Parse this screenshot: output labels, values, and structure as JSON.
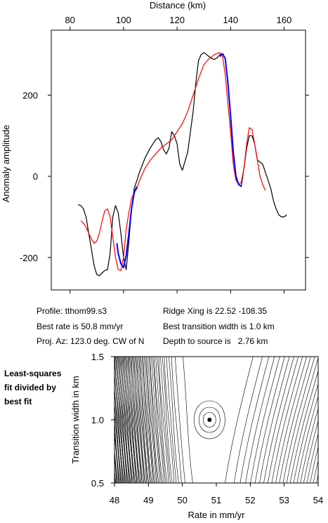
{
  "chart_data": [
    {
      "type": "line",
      "xlabel": "Distance (km)",
      "ylabel": "Anomaly amplitude",
      "xlim": [
        73,
        168
      ],
      "ylim": [
        -280,
        360
      ],
      "x_ticks": [
        80,
        100,
        120,
        140,
        160
      ],
      "y_ticks": [
        -200,
        0,
        200
      ],
      "series": [
        {
          "color": "#000000",
          "x": [
            83,
            84,
            85,
            86,
            87,
            88,
            89,
            90,
            91,
            92,
            93,
            94,
            95,
            96,
            97,
            98,
            99,
            100,
            101,
            102,
            103,
            104,
            105,
            106,
            108,
            110,
            112,
            113,
            114,
            115,
            116,
            117,
            118,
            119,
            120,
            121,
            122,
            124,
            126,
            127,
            128,
            129,
            130,
            131,
            132,
            133,
            134,
            135,
            136,
            137,
            138,
            139,
            140,
            141,
            142,
            143,
            144,
            145,
            146,
            147,
            148,
            149,
            150,
            151,
            152,
            153,
            154,
            155,
            156,
            157,
            158,
            159,
            160,
            161
          ],
          "y": [
            -70,
            -72,
            -80,
            -100,
            -140,
            -180,
            -220,
            -242,
            -245,
            -238,
            -232,
            -230,
            -190,
            -100,
            -72,
            -90,
            -140,
            -200,
            -230,
            -160,
            -80,
            -30,
            -10,
            10,
            45,
            70,
            90,
            95,
            85,
            65,
            55,
            70,
            110,
            100,
            80,
            30,
            15,
            60,
            160,
            230,
            285,
            300,
            305,
            300,
            295,
            290,
            288,
            292,
            300,
            302,
            290,
            230,
            150,
            60,
            0,
            -20,
            -25,
            20,
            70,
            100,
            100,
            80,
            40,
            35,
            30,
            10,
            -10,
            -30,
            -60,
            -80,
            -95,
            -100,
            -100,
            -95
          ]
        },
        {
          "color": "#ff0000",
          "x": [
            84,
            85,
            86,
            87,
            88,
            89,
            90,
            91,
            92,
            93,
            94,
            95,
            96,
            97,
            98,
            99,
            100,
            101,
            102,
            103,
            104,
            105,
            106,
            108,
            110,
            112,
            114,
            116,
            118,
            120,
            122,
            124,
            126,
            128,
            130,
            132,
            134,
            136,
            137,
            138,
            139,
            140,
            141,
            142,
            143,
            144,
            145,
            146,
            147,
            148,
            149,
            150,
            151,
            152,
            153
          ],
          "y": [
            -110,
            -115,
            -125,
            -140,
            -155,
            -165,
            -160,
            -140,
            -110,
            -85,
            -80,
            -100,
            -150,
            -200,
            -230,
            -232,
            -200,
            -130,
            -90,
            -55,
            -40,
            -30,
            -10,
            20,
            40,
            55,
            70,
            80,
            90,
            110,
            130,
            160,
            200,
            240,
            275,
            290,
            300,
            305,
            295,
            250,
            180,
            110,
            30,
            -10,
            -20,
            -15,
            20,
            80,
            120,
            115,
            80,
            40,
            0,
            -20,
            -35
          ]
        },
        {
          "color": "#0000ff",
          "x": [
            97.5,
            98,
            99,
            100,
            101,
            102,
            103,
            104,
            105
          ],
          "y": [
            -165,
            -190,
            -215,
            -225,
            -195,
            -140,
            -80,
            -40,
            -25
          ]
        },
        {
          "color": "#0000ff",
          "x": [
            136,
            137,
            138,
            139,
            140,
            141,
            142,
            143,
            144
          ],
          "y": [
            295,
            302,
            290,
            230,
            150,
            60,
            0,
            -20,
            -25
          ]
        }
      ]
    },
    {
      "type": "contour",
      "xlabel": "Rate in mm/yr",
      "ylabel": "Transition width in km",
      "xlim": [
        48,
        54
      ],
      "ylim": [
        0.5,
        1.5
      ],
      "x_ticks": [
        48,
        49,
        50,
        51,
        52,
        53,
        54
      ],
      "y_ticks": [
        0.5,
        1.0,
        1.5
      ],
      "best_fit": {
        "rate": 50.8,
        "width": 1.0
      }
    }
  ],
  "info": {
    "profile": "Profile: tthom99.s3",
    "best_rate": "Best rate is 50.8 mm/yr",
    "proj_az": "Proj. Az: 123.0 deg. CW of N",
    "ridge_xing": "Ridge Xing is 22.52 -108.35",
    "best_transition": "Best transition width is 1.0 km",
    "depth": "Depth to source is   2.76 km"
  },
  "side_note": [
    "Least-squares",
    "fit divided by",
    "best fit"
  ]
}
